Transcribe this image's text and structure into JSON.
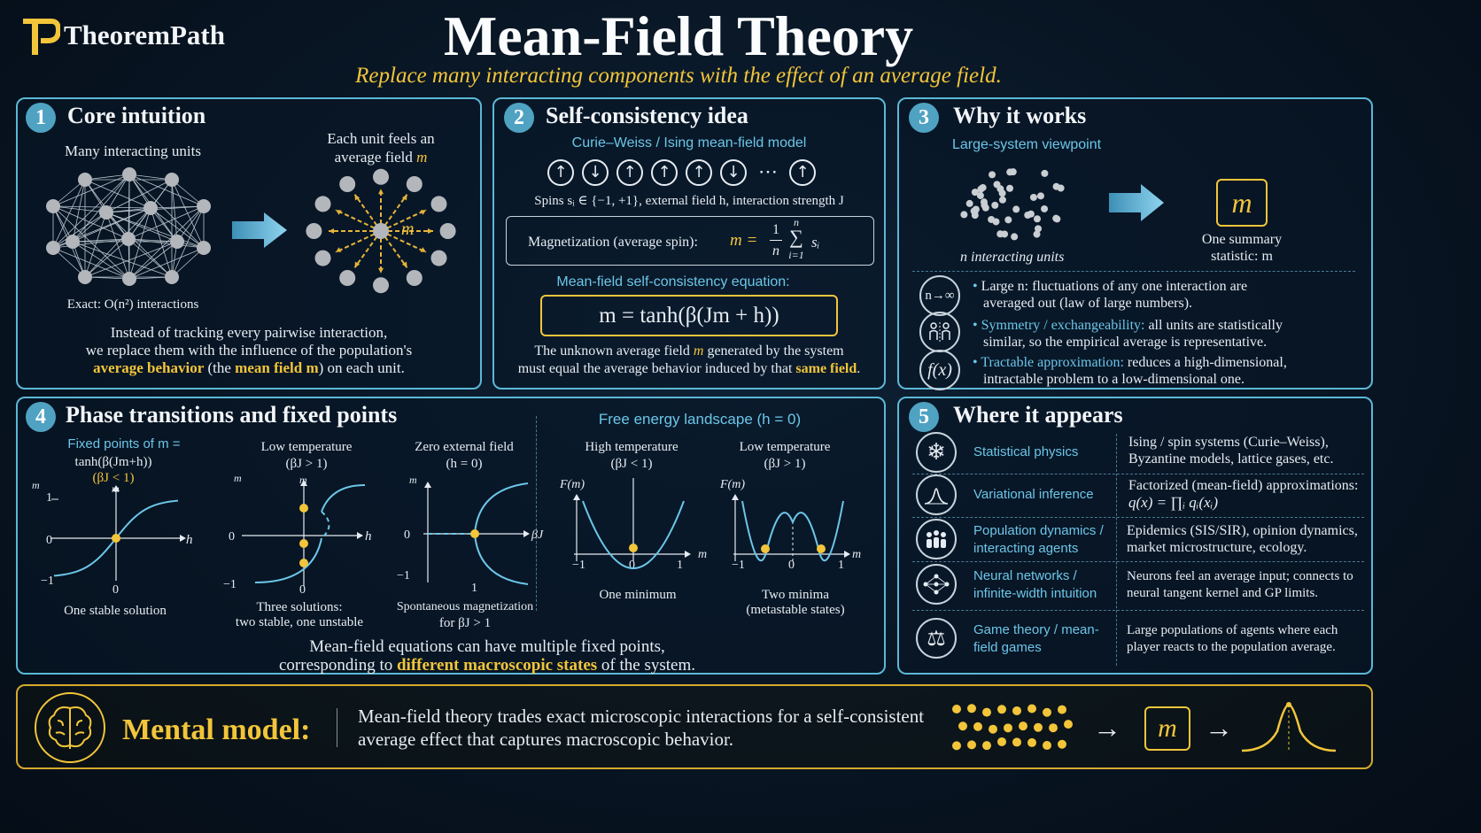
{
  "header": {
    "brand": "TheoremPath",
    "logo_letter": "TP",
    "title": "Mean-Field Theory",
    "subtitle": "Replace many interacting components with the effect of an average field."
  },
  "panel1": {
    "number": "1",
    "title": "Core intuition",
    "left_label": "Many interacting units",
    "right_label_1": "Each unit feels an",
    "right_label_2": "average field",
    "right_label_m": "m",
    "exact_label": "Exact: O(n²) interactions",
    "star_m": "m",
    "desc_1": "Instead of tracking every pairwise interaction,",
    "desc_2": "we replace them with the influence of the population's",
    "desc_3a": "average behavior",
    "desc_3b": " (the ",
    "desc_3c": "mean field m",
    "desc_3d": ") on each unit."
  },
  "panel2": {
    "number": "2",
    "title": "Self-consistency idea",
    "model": "Curie–Weiss / Ising mean-field model",
    "spins": [
      "↑",
      "↓",
      "↑",
      "↑",
      "↑",
      "↓",
      "⋯",
      "↑"
    ],
    "spins_desc": "Spins sᵢ ∈ {−1, +1}, external field h, interaction strength J",
    "magnetization_label": "Magnetization (average spin):",
    "magnetization_lhs": "m =",
    "magnetization_frac_num": "1",
    "magnetization_frac_den": "n",
    "magnetization_sum_top": "n",
    "magnetization_sum": "∑",
    "magnetization_sum_bottom": "i=1",
    "magnetization_term": "sᵢ",
    "eq_label": "Mean-field self-consistency equation:",
    "equation": "m = tanh(β(Jm + h))",
    "note_1a": "The unknown average field ",
    "note_1b": "m",
    "note_1c": " generated by the system",
    "note_2a": "must equal the average behavior induced by that ",
    "note_2b": "same field",
    "note_2c": "."
  },
  "panel3": {
    "number": "3",
    "title": "Why it works",
    "viewpoint": "Large-system viewpoint",
    "cloud_label": "n interacting units",
    "summary_symbol": "m",
    "summary_label_1": "One summary",
    "summary_label_2": "statistic: m",
    "points": [
      {
        "icon": "n→∞",
        "head": "Large n:",
        "text1": " fluctuations of any one interaction are",
        "text2": "averaged out (law of large numbers)."
      },
      {
        "icon": "",
        "head": "Symmetry / exchangeability:",
        "text1": " all units are statistically",
        "text2": "similar, so the empirical average is representative."
      },
      {
        "icon": "f(x)",
        "head": "Tractable approximation:",
        "text1": " reduces a high-dimensional,",
        "text2": "intractable problem to a low-dimensional one."
      }
    ]
  },
  "panel4": {
    "number": "4",
    "title": "Phase transitions and fixed points",
    "fixed_title_1": "Fixed points of m =",
    "fixed_title_2": "tanh(β(Jm+h))",
    "fixed_title_3": "(βJ < 1)",
    "low_temp_1": "Low temperature",
    "low_temp_2": "(βJ > 1)",
    "zero_field_1": "Zero external field",
    "zero_field_2": "(h = 0)",
    "landscape_title": "Free energy landscape (h = 0)",
    "high_temp_1": "High temperature",
    "high_temp_2": "(βJ < 1)",
    "low_temp_b1": "Low temperature",
    "low_temp_b2": "(βJ > 1)",
    "cap1": "One stable solution",
    "cap2a": "Three solutions:",
    "cap2b": "two stable, one unstable",
    "cap3a": "Spontaneous magnetization",
    "cap3b": "for βJ > 1",
    "cap4": "One minimum",
    "cap5a": "Two minima",
    "cap5b": "(metastable states)",
    "axis_m": "m",
    "axis_h": "h",
    "axis_bj": "βJ",
    "axis_fm": "F(m)",
    "tick_1": "1",
    "tick_0": "0",
    "tick_neg1": "−1",
    "footer_1": "Mean-field equations can have multiple fixed points,",
    "footer_2a": "corresponding to ",
    "footer_2b": "different macroscopic states",
    "footer_2c": " of the system."
  },
  "panel5": {
    "number": "5",
    "title": "Where it appears",
    "rows": [
      {
        "name": "Statistical physics",
        "desc1": "Ising / spin systems (Curie–Weiss),",
        "desc2": "Byzantine models, lattice gases, etc."
      },
      {
        "name": "Variational inference",
        "desc1": "Factorized (mean-field) approximations:",
        "desc2": "q(x) = ∏ᵢ qᵢ(xᵢ)"
      },
      {
        "name": "Population dynamics / interacting agents",
        "desc1": "Epidemics (SIS/SIR), opinion dynamics,",
        "desc2": "market microstructure, ecology."
      },
      {
        "name": "Neural networks / infinite-width intuition",
        "desc1": "Neurons feel an average input; connects to",
        "desc2": "neural tangent kernel and GP limits."
      },
      {
        "name": "Game theory / mean-field games",
        "desc1": "Large populations of agents where each",
        "desc2": "player reacts to the population average."
      }
    ]
  },
  "mental": {
    "label": "Mental model:",
    "text1": "Mean-field theory trades exact microscopic interactions for a self-consistent",
    "text2": "average effect that captures macroscopic behavior.",
    "symbol": "m",
    "arrow": "→"
  },
  "colors": {
    "accent_cyan": "#5bb8d6",
    "accent_gold": "#f2c53a",
    "background": "#081523"
  }
}
